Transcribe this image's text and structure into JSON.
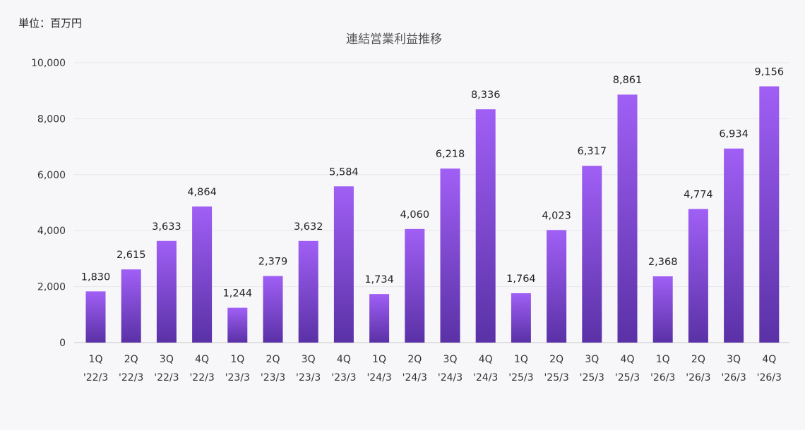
{
  "unit_label": "単位：百万円",
  "chart_data": {
    "type": "bar",
    "title": "連結営業利益推移",
    "xlabel": "",
    "ylabel": "",
    "ylim": [
      0,
      10000
    ],
    "yticks": [
      0,
      2000,
      4000,
      6000,
      8000,
      10000
    ],
    "ytick_labels": [
      "0",
      "2,000",
      "4,000",
      "6,000",
      "8,000",
      "10,000"
    ],
    "grid": true,
    "legend": "none",
    "colors": {
      "bar_top": "#a05ff5",
      "bar_bottom": "#5a31a6"
    },
    "categories": [
      [
        "1Q",
        "'22/3"
      ],
      [
        "2Q",
        "'22/3"
      ],
      [
        "3Q",
        "'22/3"
      ],
      [
        "4Q",
        "'22/3"
      ],
      [
        "1Q",
        "'23/3"
      ],
      [
        "2Q",
        "'23/3"
      ],
      [
        "3Q",
        "'23/3"
      ],
      [
        "4Q",
        "'23/3"
      ],
      [
        "1Q",
        "'24/3"
      ],
      [
        "2Q",
        "'24/3"
      ],
      [
        "3Q",
        "'24/3"
      ],
      [
        "4Q",
        "'24/3"
      ],
      [
        "1Q",
        "'25/3"
      ],
      [
        "2Q",
        "'25/3"
      ],
      [
        "3Q",
        "'25/3"
      ],
      [
        "4Q",
        "'25/3"
      ],
      [
        "1Q",
        "'26/3"
      ],
      [
        "2Q",
        "'26/3"
      ],
      [
        "3Q",
        "'26/3"
      ],
      [
        "4Q",
        "'26/3"
      ]
    ],
    "values": [
      1830,
      2615,
      3633,
      4864,
      1244,
      2379,
      3632,
      5584,
      1734,
      4060,
      6218,
      8336,
      1764,
      4023,
      6317,
      8861,
      2368,
      4774,
      6934,
      9156
    ],
    "value_labels": [
      "1,830",
      "2,615",
      "3,633",
      "4,864",
      "1,244",
      "2,379",
      "3,632",
      "5,584",
      "1,734",
      "4,060",
      "6,218",
      "8,336",
      "1,764",
      "4,023",
      "6,317",
      "8,861",
      "2,368",
      "4,774",
      "6,934",
      "9,156"
    ]
  }
}
